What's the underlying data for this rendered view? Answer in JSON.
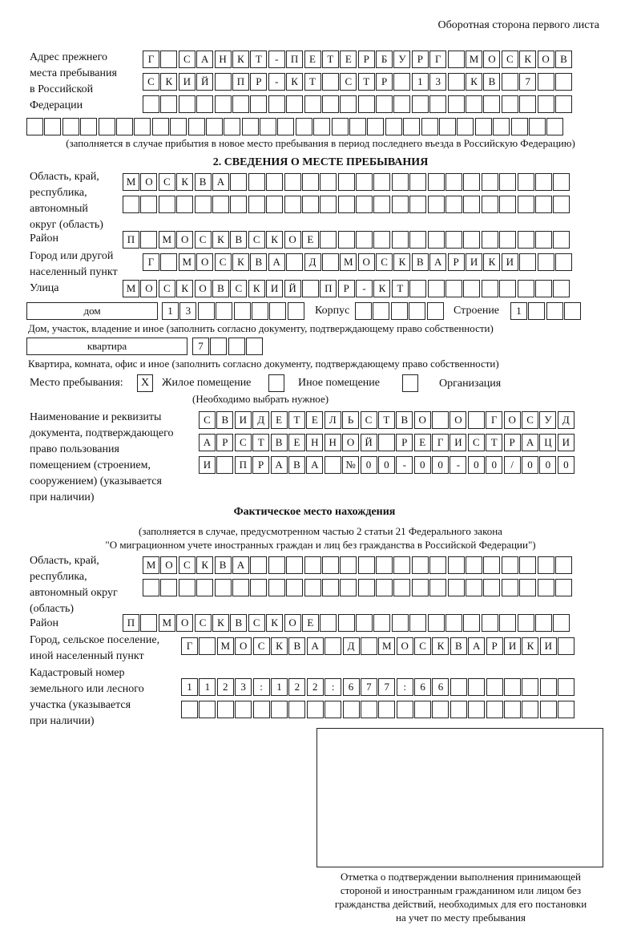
{
  "header": "Оборотная сторона первого листа",
  "previous_address": {
    "label": [
      "Адрес прежнего",
      "места пребывания",
      "в Российской",
      "Федерации"
    ],
    "rows": [
      [
        "Г",
        "",
        "С",
        "А",
        "Н",
        "К",
        "Т",
        "-",
        "П",
        "Е",
        "Т",
        "Е",
        "Р",
        "Б",
        "У",
        "Р",
        "Г",
        "",
        "М",
        "О",
        "С",
        "К",
        "О",
        "В"
      ],
      [
        "С",
        "К",
        "И",
        "Й",
        "",
        "П",
        "Р",
        "-",
        "К",
        "Т",
        "",
        "С",
        "Т",
        "Р",
        "",
        "1",
        "3",
        "",
        "К",
        "В",
        "",
        "7",
        "",
        ""
      ],
      [
        "",
        "",
        "",
        "",
        "",
        "",
        "",
        "",
        "",
        "",
        "",
        "",
        "",
        "",
        "",
        "",
        "",
        "",
        "",
        "",
        "",
        "",
        "",
        ""
      ],
      [
        "",
        "",
        "",
        "",
        "",
        "",
        "",
        "",
        "",
        "",
        "",
        "",
        "",
        "",
        "",
        "",
        "",
        "",
        "",
        "",
        "",
        "",
        "",
        "",
        "",
        "",
        "",
        "",
        "",
        ""
      ]
    ],
    "note": "(заполняется в случае прибытия в новое место пребывания в период последнего въезда в Российскую Федерацию)"
  },
  "section2": {
    "title": "2. СВЕДЕНИЯ О МЕСТЕ ПРЕБЫВАНИЯ",
    "region_label": [
      "Область, край,",
      "республика,",
      "автономный",
      "округ (область)"
    ],
    "region_rows": [
      [
        "М",
        "О",
        "С",
        "К",
        "В",
        "А",
        "",
        "",
        "",
        "",
        "",
        "",
        "",
        "",
        "",
        "",
        "",
        "",
        "",
        "",
        "",
        "",
        "",
        "",
        ""
      ],
      [
        "",
        "",
        "",
        "",
        "",
        "",
        "",
        "",
        "",
        "",
        "",
        "",
        "",
        "",
        "",
        "",
        "",
        "",
        "",
        "",
        "",
        "",
        "",
        "",
        ""
      ]
    ],
    "district_label": "Район",
    "district_row": [
      "П",
      "",
      "М",
      "О",
      "С",
      "К",
      "В",
      "С",
      "К",
      "О",
      "Е",
      "",
      "",
      "",
      "",
      "",
      "",
      "",
      "",
      "",
      "",
      "",
      "",
      "",
      ""
    ],
    "city_label": [
      "Город или другой",
      "населенный пункт"
    ],
    "city_row": [
      "Г",
      "",
      "М",
      "О",
      "С",
      "К",
      "В",
      "А",
      "",
      "Д",
      "",
      "М",
      "О",
      "С",
      "К",
      "В",
      "А",
      "Р",
      "И",
      "К",
      "И",
      "",
      "",
      ""
    ],
    "street_label": "Улица",
    "street_row": [
      "М",
      "О",
      "С",
      "К",
      "О",
      "В",
      "С",
      "К",
      "И",
      "Й",
      "",
      "П",
      "Р",
      "-",
      "К",
      "Т",
      "",
      "",
      "",
      "",
      "",
      "",
      "",
      "",
      ""
    ],
    "house_type": "дом",
    "house_row": [
      "1",
      "3",
      "",
      "",
      "",
      "",
      "",
      ""
    ],
    "korpus_label": "Корпус",
    "korpus_row": [
      "",
      "",
      "",
      "",
      ""
    ],
    "building_label": "Строение",
    "building_row": [
      "1",
      "",
      "",
      ""
    ],
    "house_note": "Дом, участок, владение и иное (заполнить согласно документу, подтверждающему право собственности)",
    "apartment_type": "квартира",
    "apartment_row": [
      "7",
      "",
      "",
      ""
    ],
    "apartment_note": "Квартира, комната, офис и иное (заполнить согласно документу, подтверждающему право собственности)",
    "stay_place": {
      "label": "Место пребывания:",
      "options": [
        {
          "mark": "X",
          "label": "Жилое помещение",
          "checked": true
        },
        {
          "mark": "",
          "label": "Иное помещение",
          "checked": false
        },
        {
          "mark": "",
          "label": "Организация",
          "checked": false
        }
      ],
      "hint": "(Необходимо выбрать нужное)"
    },
    "document_label": [
      "Наименование и реквизиты",
      "документа, подтверждающего",
      "право пользования",
      "помещением (строением,",
      "сооружением) (указывается",
      "при наличии)"
    ],
    "document_rows": [
      [
        "С",
        "В",
        "И",
        "Д",
        "Е",
        "Т",
        "Е",
        "Л",
        "Ь",
        "С",
        "Т",
        "В",
        "О",
        "",
        "О",
        "",
        "Г",
        "О",
        "С",
        "У",
        "Д"
      ],
      [
        "А",
        "Р",
        "С",
        "Т",
        "В",
        "Е",
        "Н",
        "Н",
        "О",
        "Й",
        "",
        "Р",
        "Е",
        "Г",
        "И",
        "С",
        "Т",
        "Р",
        "А",
        "Ц",
        "И"
      ],
      [
        "И",
        "",
        "П",
        "Р",
        "А",
        "В",
        "А",
        "",
        "№",
        "0",
        "0",
        "-",
        "0",
        "0",
        "-",
        "0",
        "0",
        "/",
        "0",
        "0",
        "0"
      ]
    ]
  },
  "actual": {
    "title": "Фактическое место нахождения",
    "subtitle": [
      "(заполняется в случае, предусмотренном частью 2 статьи 21 Федерального закона",
      "\"О миграционном учете иностранных граждан и лиц без гражданства в Российской Федерации\")"
    ],
    "region_label": [
      "Область, край,",
      "республика,",
      "автономный округ",
      "(область)"
    ],
    "region_rows": [
      [
        "М",
        "О",
        "С",
        "К",
        "В",
        "А",
        "",
        "",
        "",
        "",
        "",
        "",
        "",
        "",
        "",
        "",
        "",
        "",
        "",
        "",
        "",
        "",
        "",
        ""
      ],
      [
        "",
        "",
        "",
        "",
        "",
        "",
        "",
        "",
        "",
        "",
        "",
        "",
        "",
        "",
        "",
        "",
        "",
        "",
        "",
        "",
        "",
        "",
        "",
        ""
      ]
    ],
    "district_label": "Район",
    "district_row": [
      "П",
      "",
      "М",
      "О",
      "С",
      "К",
      "В",
      "С",
      "К",
      "О",
      "Е",
      "",
      "",
      "",
      "",
      "",
      "",
      "",
      "",
      "",
      "",
      "",
      "",
      "",
      ""
    ],
    "city_label": [
      "Город, сельское поселение,",
      "иной населенный пункт"
    ],
    "city_row": [
      "Г",
      "",
      "М",
      "О",
      "С",
      "К",
      "В",
      "А",
      "",
      "Д",
      "",
      "М",
      "О",
      "С",
      "К",
      "В",
      "А",
      "Р",
      "И",
      "К",
      "И",
      ""
    ],
    "cadastral_label": [
      "Кадастровый номер",
      "земельного или лесного",
      "участка (указывается",
      "при наличии)"
    ],
    "cadastral_rows": [
      [
        "1",
        "1",
        "2",
        "3",
        ":",
        "1",
        "2",
        "2",
        ":",
        "6",
        "7",
        "7",
        ":",
        "6",
        "6",
        "",
        "",
        "",
        "",
        "",
        "",
        ""
      ],
      [
        "",
        "",
        "",
        "",
        "",
        "",
        "",
        "",
        "",
        "",
        "",
        "",
        "",
        "",
        "",
        "",
        "",
        "",
        "",
        "",
        "",
        ""
      ]
    ]
  },
  "confirmation_caption": [
    "Отметка о подтверждении выполнения принимающей",
    "стороной и иностранным гражданином или лицом без",
    "гражданства действий, необходимых для его постановки",
    "на учет по месту пребывания"
  ]
}
